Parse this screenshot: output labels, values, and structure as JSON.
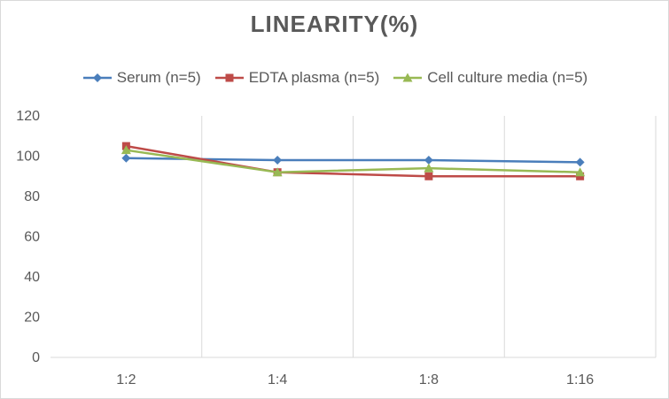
{
  "chart_data": {
    "type": "line",
    "title": "LINEARITY(%)",
    "categories": [
      "1:2",
      "1:4",
      "1:8",
      "1:16"
    ],
    "ylim": [
      0,
      120
    ],
    "yticks": [
      0,
      20,
      40,
      60,
      80,
      100,
      120
    ],
    "grid": "vertical",
    "legend_position": "top",
    "series": [
      {
        "name": "Serum (n=5)",
        "values": [
          99,
          98,
          98,
          97
        ],
        "color": "#4a7ebb",
        "marker": "diamond"
      },
      {
        "name": "EDTA plasma (n=5)",
        "values": [
          105,
          92,
          90,
          90
        ],
        "color": "#be4b48",
        "marker": "square"
      },
      {
        "name": "Cell culture media (n=5)",
        "values": [
          103,
          92,
          94,
          92
        ],
        "color": "#98b954",
        "marker": "triangle"
      }
    ]
  }
}
